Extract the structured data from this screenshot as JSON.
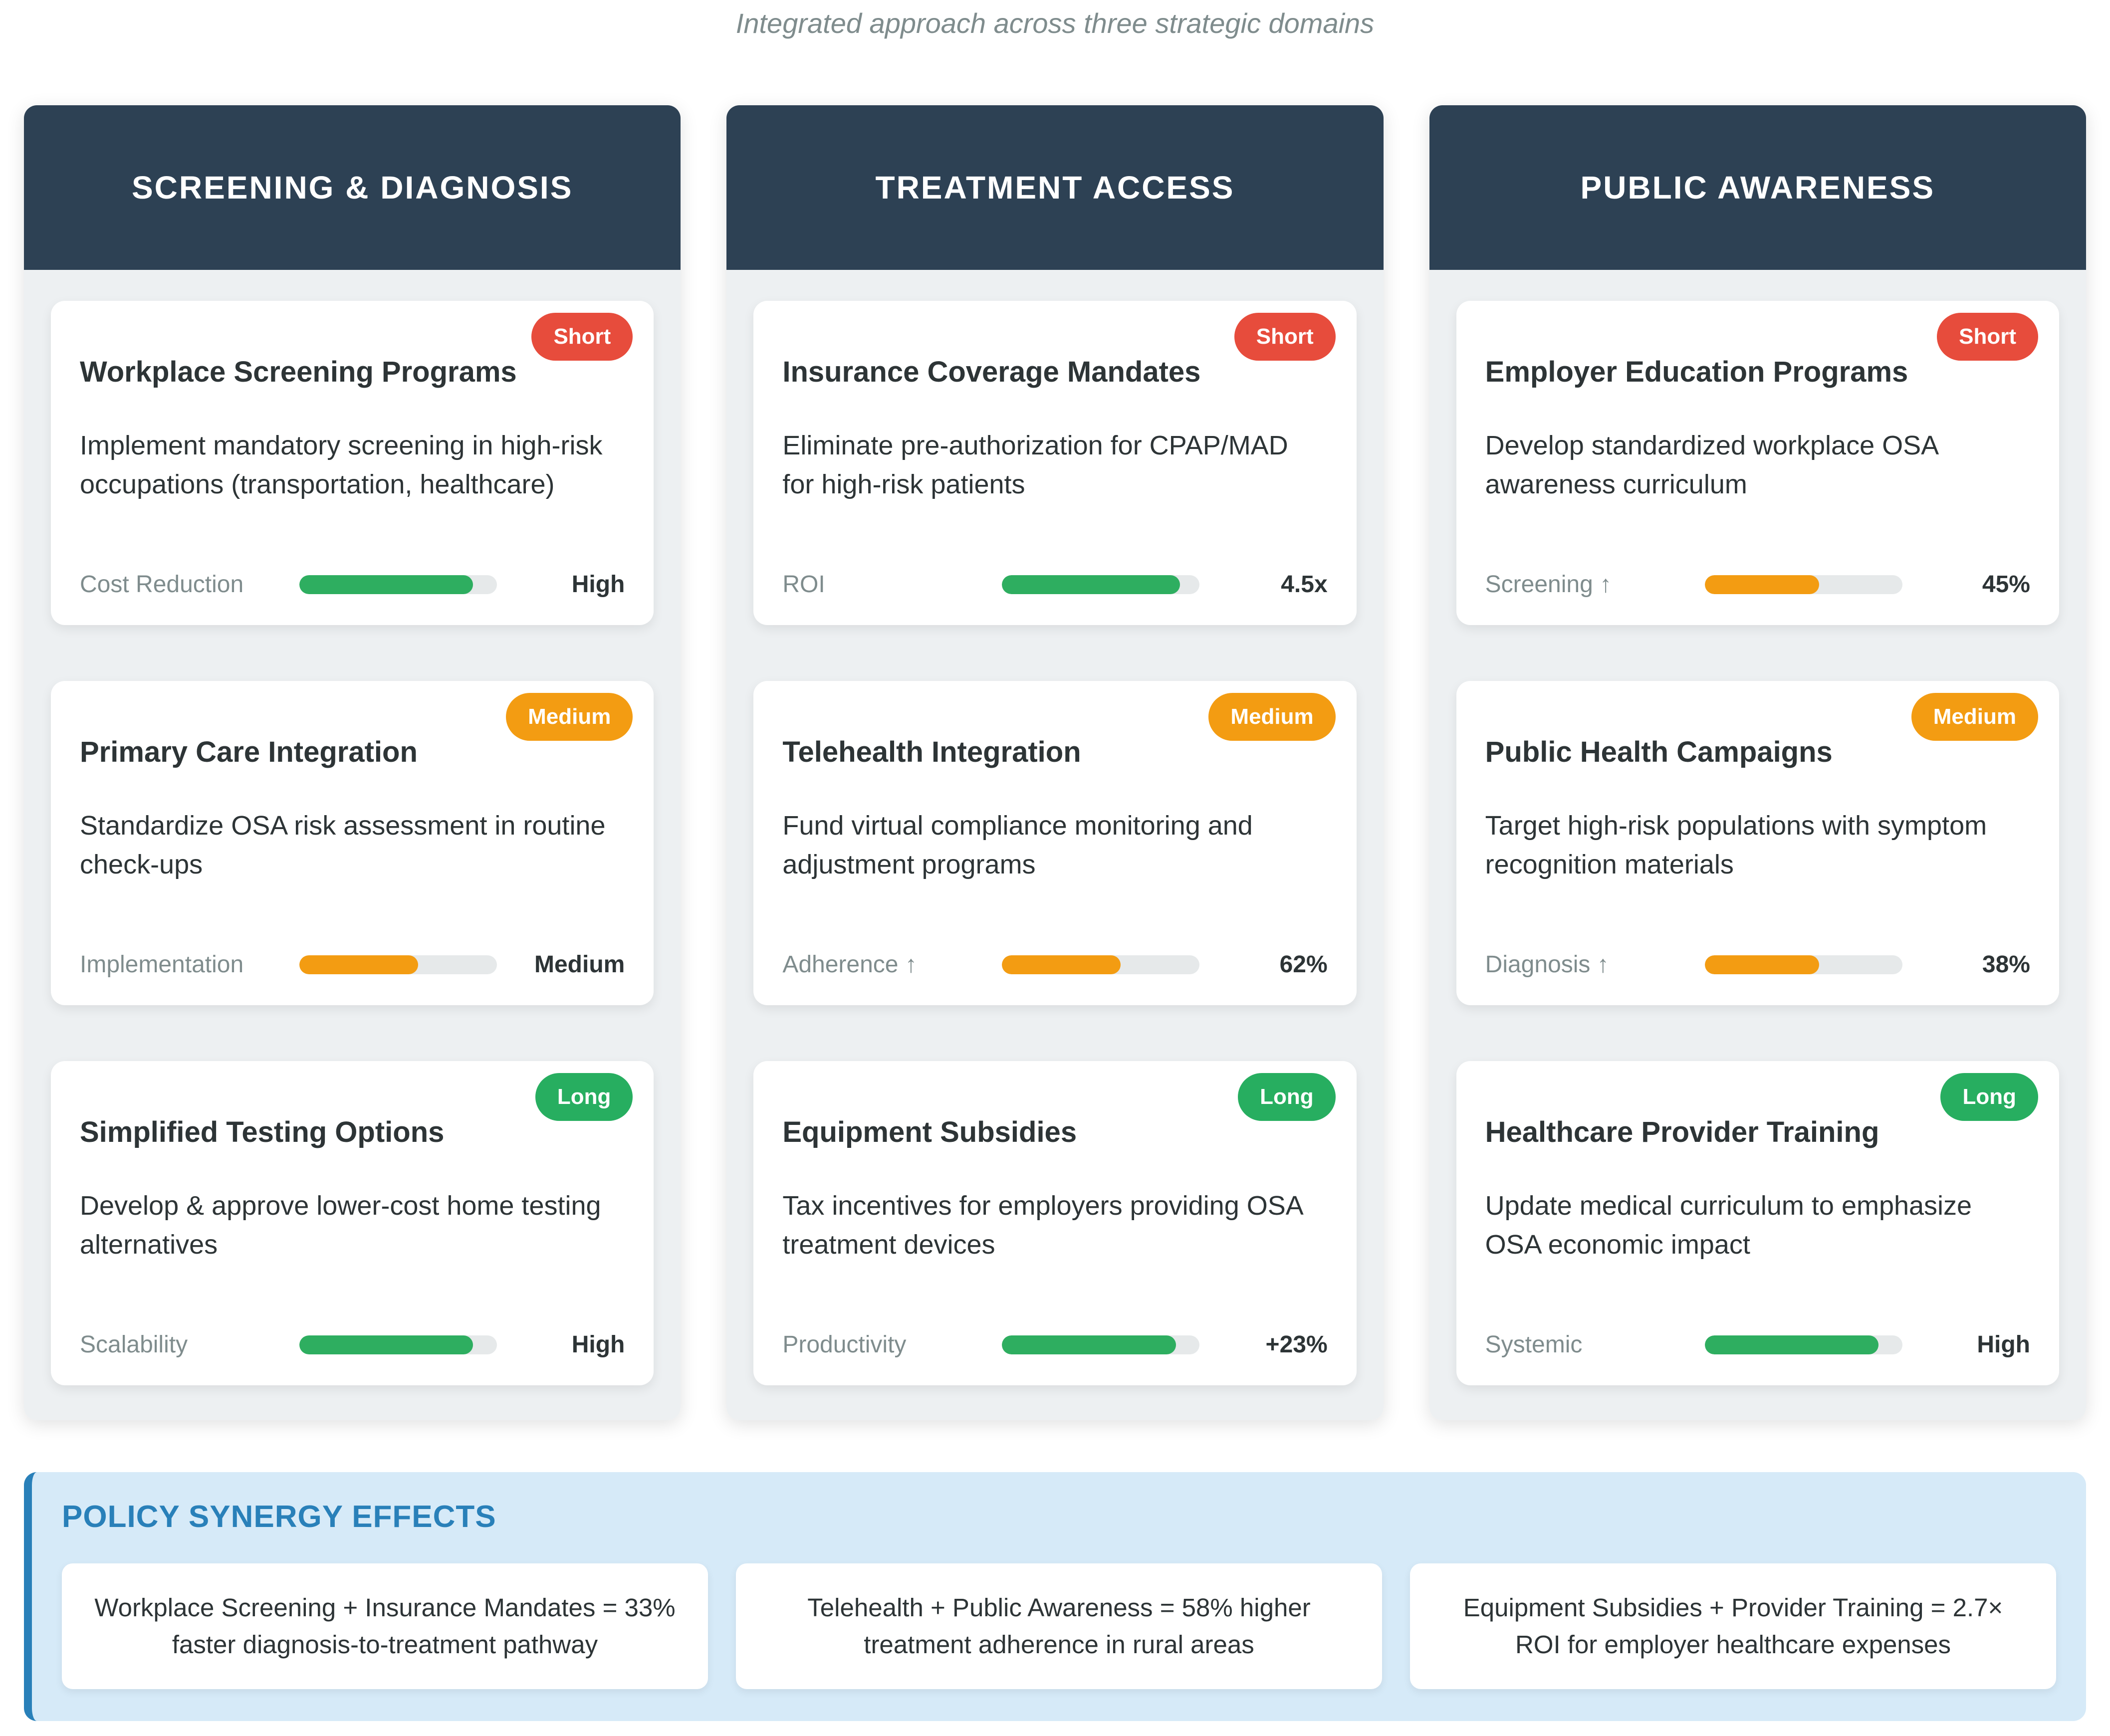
{
  "page": {
    "subtitle": "Integrated approach across three strategic domains"
  },
  "colors": {
    "header_navy": "#2d4154",
    "column_bg": "#edf0f2",
    "badge_red": "#e74c3c",
    "badge_orange": "#f39c12",
    "badge_green": "#27ae60",
    "bar_green": "#2eae60",
    "bar_orange": "#f39c12",
    "bar_track": "#e6e9ea",
    "synergy_blue": "#2980b9",
    "synergy_bg": "#d6eaf8",
    "text_dark": "#2d3436",
    "text_gray": "#7f8c8d"
  },
  "columns": [
    {
      "header": "SCREENING & DIAGNOSIS",
      "cards": [
        {
          "title": "Workplace Screening Programs",
          "badge": {
            "label": "Short",
            "color": "#e74c3c"
          },
          "description": "Implement mandatory screening in high-risk occupations (transportation, healthcare)",
          "metric": {
            "label": "Cost Reduction",
            "value": "High",
            "fill_pct": 88,
            "bar_color": "#2eae60"
          }
        },
        {
          "title": "Primary Care Integration",
          "badge": {
            "label": "Medium",
            "color": "#f39c12"
          },
          "description": "Standardize OSA risk assessment in routine check-ups",
          "metric": {
            "label": "Implementation",
            "value": "Medium",
            "fill_pct": 60,
            "bar_color": "#f39c12"
          }
        },
        {
          "title": "Simplified Testing Options",
          "badge": {
            "label": "Long",
            "color": "#27ae60"
          },
          "description": "Develop & approve lower-cost home testing alternatives",
          "metric": {
            "label": "Scalability",
            "value": "High",
            "fill_pct": 88,
            "bar_color": "#2eae60"
          }
        }
      ]
    },
    {
      "header": "TREATMENT ACCESS",
      "cards": [
        {
          "title": "Insurance Coverage Mandates",
          "badge": {
            "label": "Short",
            "color": "#e74c3c"
          },
          "description": "Eliminate pre-authorization for CPAP/MAD for high-risk patients",
          "metric": {
            "label": "ROI",
            "value": "4.5x",
            "fill_pct": 90,
            "bar_color": "#2eae60"
          }
        },
        {
          "title": "Telehealth Integration",
          "badge": {
            "label": "Medium",
            "color": "#f39c12"
          },
          "description": "Fund virtual compliance monitoring and adjustment programs",
          "metric": {
            "label": "Adherence ↑",
            "value": "62%",
            "fill_pct": 60,
            "bar_color": "#f39c12"
          }
        },
        {
          "title": "Equipment Subsidies",
          "badge": {
            "label": "Long",
            "color": "#27ae60"
          },
          "description": "Tax incentives for employers providing OSA treatment devices",
          "metric": {
            "label": "Productivity",
            "value": "+23%",
            "fill_pct": 88,
            "bar_color": "#2eae60"
          }
        }
      ]
    },
    {
      "header": "PUBLIC AWARENESS",
      "cards": [
        {
          "title": "Employer Education Programs",
          "badge": {
            "label": "Short",
            "color": "#e74c3c"
          },
          "description": "Develop standardized workplace OSA awareness curriculum",
          "metric": {
            "label": "Screening ↑",
            "value": "45%",
            "fill_pct": 58,
            "bar_color": "#f39c12"
          }
        },
        {
          "title": "Public Health Campaigns",
          "badge": {
            "label": "Medium",
            "color": "#f39c12"
          },
          "description": "Target high-risk populations with symptom recognition materials",
          "metric": {
            "label": "Diagnosis ↑",
            "value": "38%",
            "fill_pct": 58,
            "bar_color": "#f39c12"
          }
        },
        {
          "title": "Healthcare Provider Training",
          "badge": {
            "label": "Long",
            "color": "#27ae60"
          },
          "description": "Update medical curriculum to emphasize OSA economic impact",
          "metric": {
            "label": "Systemic",
            "value": "High",
            "fill_pct": 88,
            "bar_color": "#2eae60"
          }
        }
      ]
    }
  ],
  "synergy": {
    "heading": "POLICY SYNERGY EFFECTS",
    "items": [
      "Workplace Screening + Insurance Mandates = 33% faster diagnosis-to-treatment pathway",
      "Telehealth + Public Awareness = 58% higher treatment adherence in rural areas",
      "Equipment Subsidies + Provider Training = 2.7× ROI for employer healthcare expenses"
    ]
  }
}
